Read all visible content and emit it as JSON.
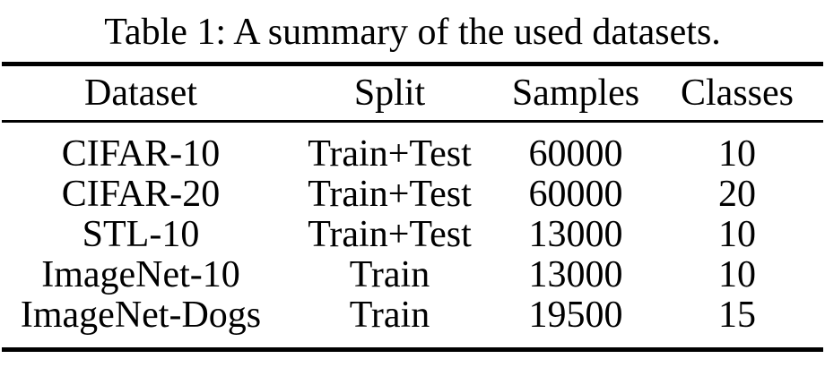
{
  "caption": "Table 1: A summary of the used datasets.",
  "table": {
    "columns": [
      "Dataset",
      "Split",
      "Samples",
      "Classes"
    ],
    "rows": [
      [
        "CIFAR-10",
        "Train+Test",
        "60000",
        "10"
      ],
      [
        "CIFAR-20",
        "Train+Test",
        "60000",
        "20"
      ],
      [
        "STL-10",
        "Train+Test",
        "13000",
        "10"
      ],
      [
        "ImageNet-10",
        "Train",
        "13000",
        "10"
      ],
      [
        "ImageNet-Dogs",
        "Train",
        "19500",
        "15"
      ]
    ]
  },
  "colors": {
    "text": "#000000",
    "background": "#ffffff",
    "rule": "#000000"
  }
}
